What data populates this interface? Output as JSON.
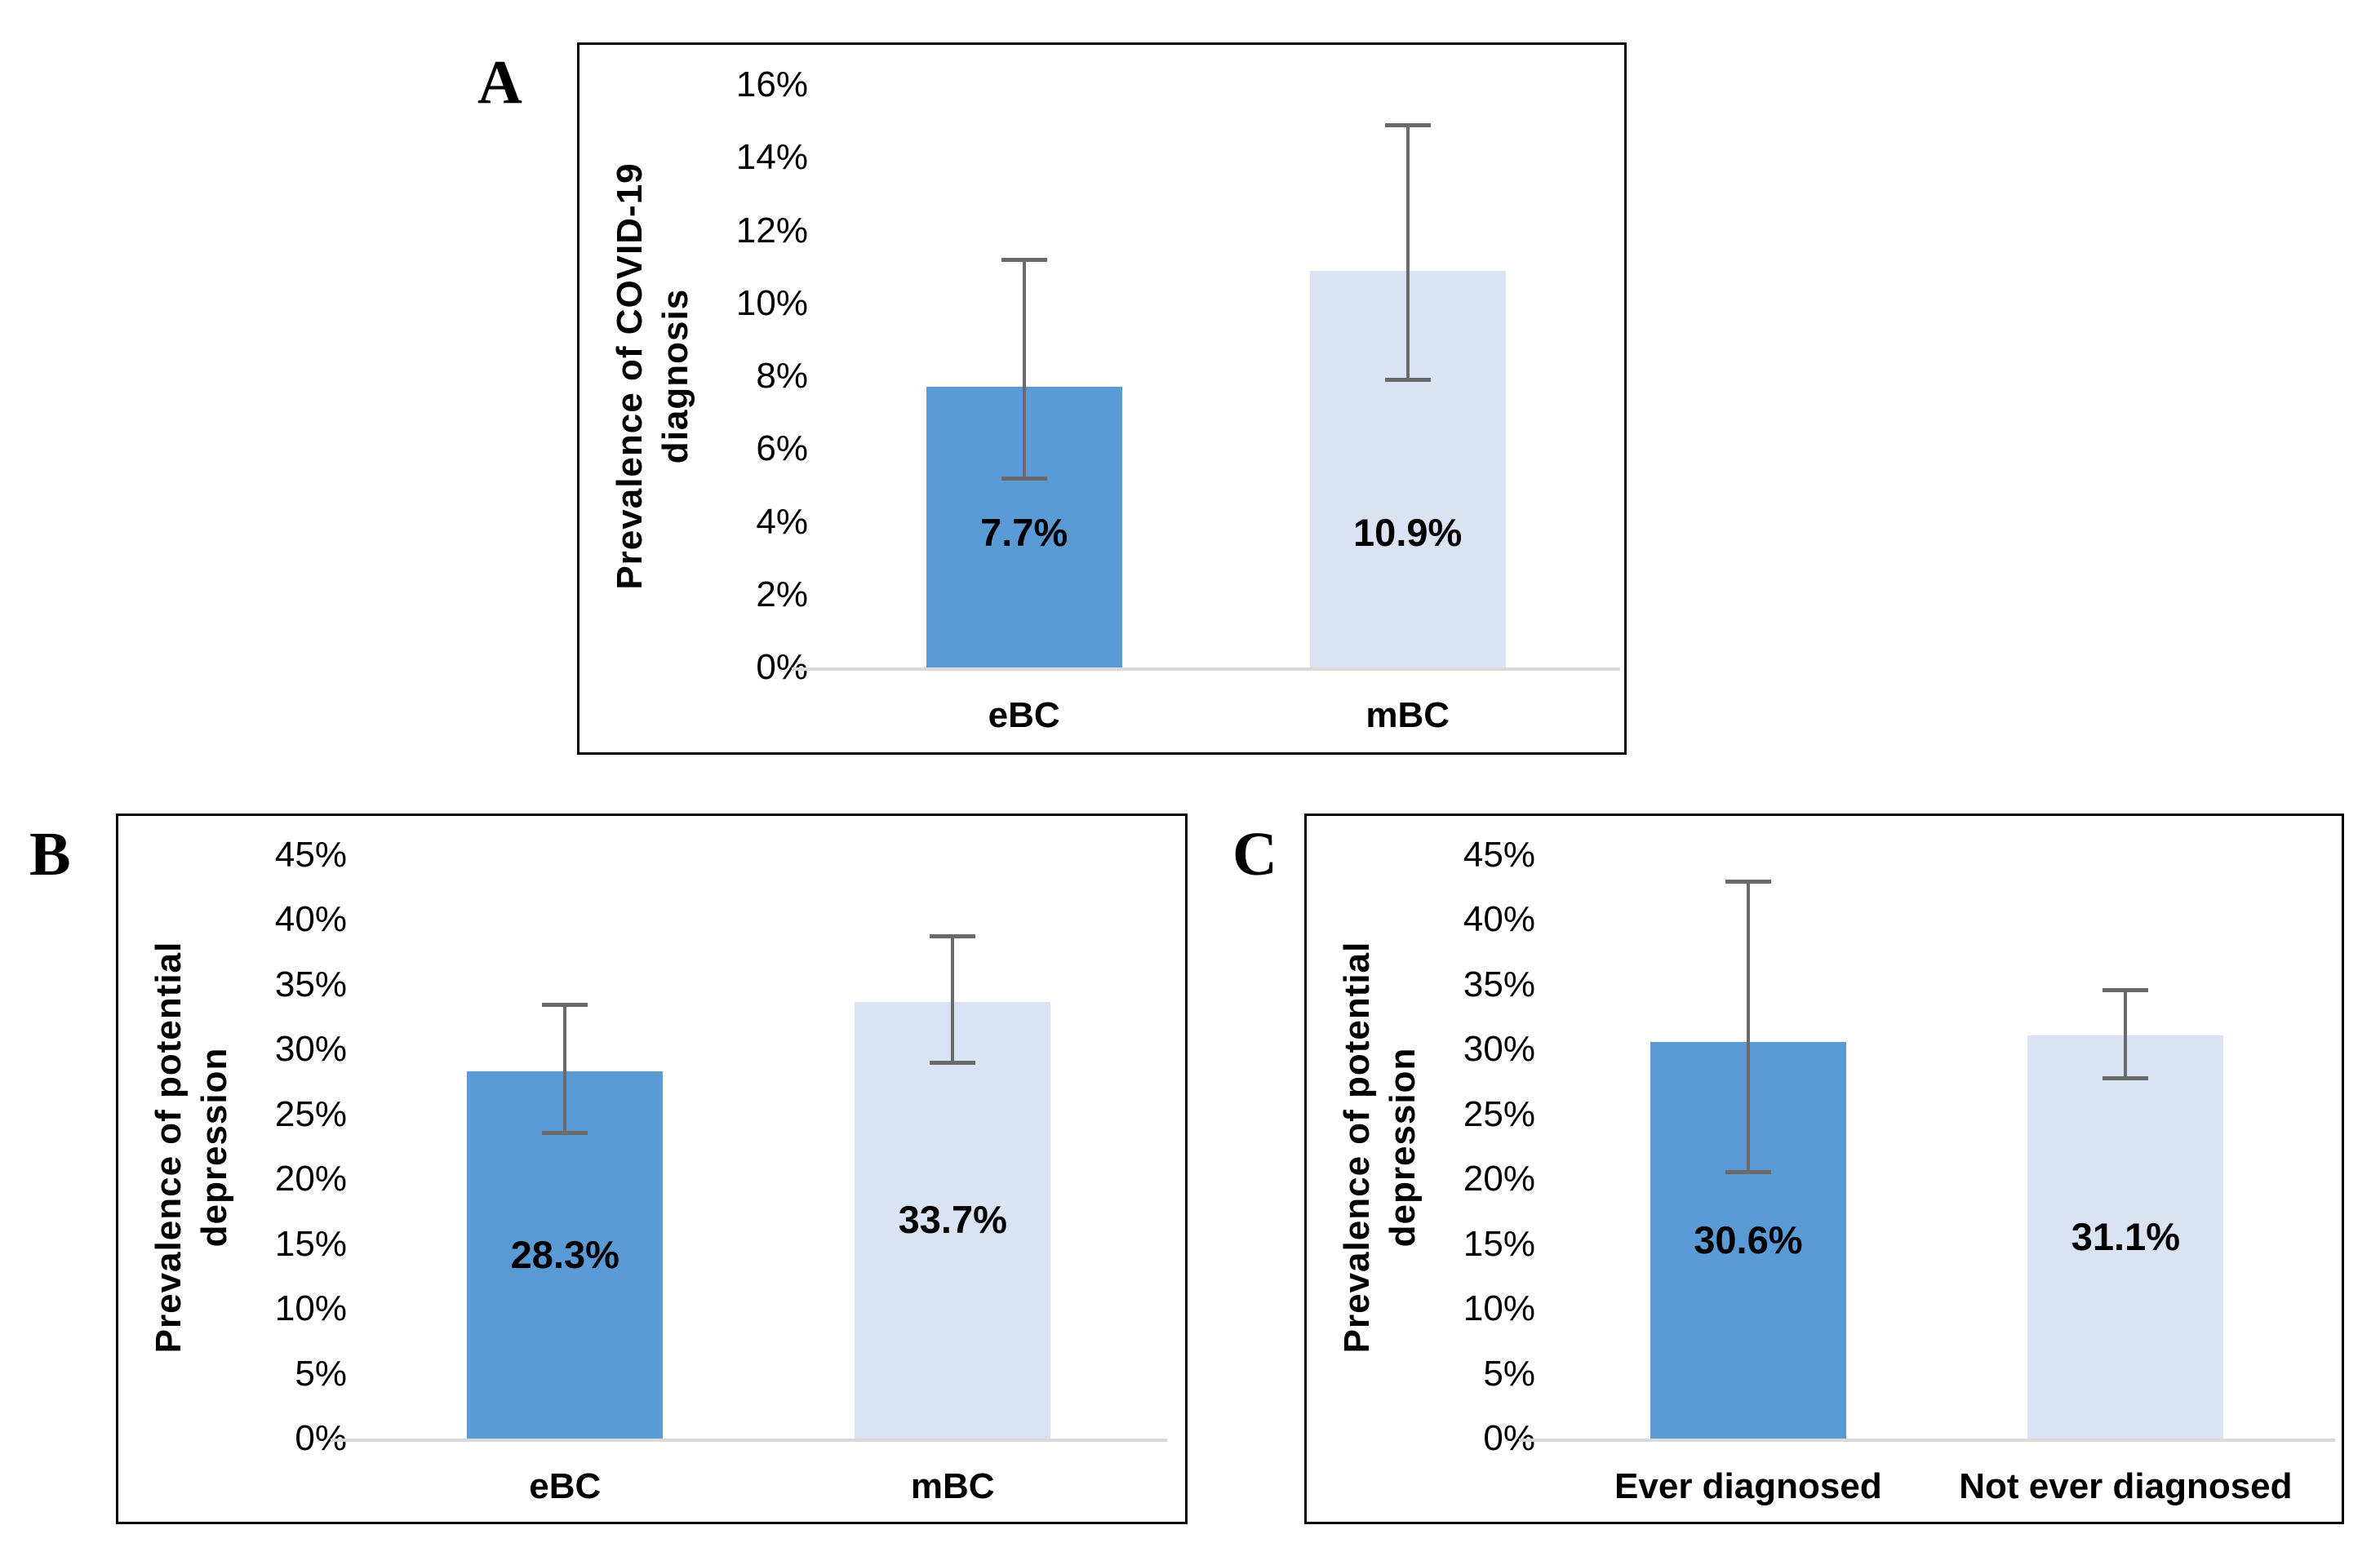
{
  "figure": {
    "colors": {
      "bar_dark": "#5B9BD5",
      "bar_light": "#DAE3F3",
      "error_bar": "#6A6A6A",
      "axis_line": "#D9D9D9",
      "border": "#000000"
    }
  },
  "chart_data": [
    {
      "panel": "A",
      "type": "bar",
      "title": "",
      "categories": [
        "eBC",
        "mBC"
      ],
      "values": [
        7.7,
        10.9
      ],
      "error_low": [
        5.2,
        7.9
      ],
      "error_high": [
        11.2,
        14.9
      ],
      "data_labels": [
        "7.7%",
        "10.9%"
      ],
      "xlabel": "",
      "ylabel": "Prevalence of COVID-19\ndiagnosis",
      "ylim": [
        0,
        16
      ],
      "ytick_step": 2,
      "ytick_suffix": "%",
      "bar_colors": [
        "#5B9BD5",
        "#DAE3F3"
      ],
      "grid": false,
      "legend": false
    },
    {
      "panel": "B",
      "type": "bar",
      "title": "",
      "categories": [
        "eBC",
        "mBC"
      ],
      "values": [
        28.3,
        33.7
      ],
      "error_low": [
        23.6,
        29.0
      ],
      "error_high": [
        33.5,
        38.8
      ],
      "data_labels": [
        "28.3%",
        "33.7%"
      ],
      "xlabel": "",
      "ylabel": "Prevalence of potential\ndepression",
      "ylim": [
        0,
        45
      ],
      "ytick_step": 5,
      "ytick_suffix": "%",
      "bar_colors": [
        "#5B9BD5",
        "#DAE3F3"
      ],
      "grid": false,
      "legend": false
    },
    {
      "panel": "C",
      "type": "bar",
      "title": "",
      "categories": [
        "Ever diagnosed",
        "Not ever diagnosed"
      ],
      "values": [
        30.6,
        31.1
      ],
      "error_low": [
        20.6,
        27.8
      ],
      "error_high": [
        43.0,
        34.6
      ],
      "data_labels": [
        "30.6%",
        "31.1%"
      ],
      "xlabel": "",
      "ylabel": "Prevalence of potential\ndepression",
      "ylim": [
        0,
        45
      ],
      "ytick_step": 5,
      "ytick_suffix": "%",
      "bar_colors": [
        "#5B9BD5",
        "#DAE3F3"
      ],
      "grid": false,
      "legend": false
    }
  ]
}
